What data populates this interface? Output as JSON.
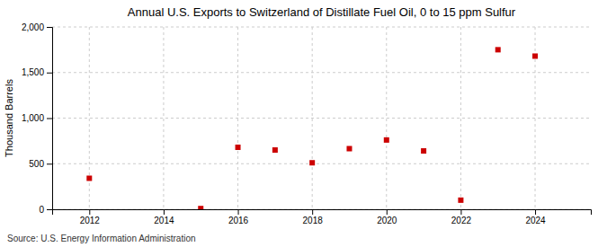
{
  "chart_data": {
    "type": "scatter",
    "title": "Annual U.S. Exports to Switzerland of Distillate Fuel Oil, 0 to 15 ppm Sulfur",
    "ylabel": "Thousand Barrels",
    "annotation": "Source: U.S. Energy Information Administration",
    "x": [
      2012,
      2015,
      2016,
      2017,
      2018,
      2019,
      2020,
      2021,
      2022,
      2023,
      2024
    ],
    "values": [
      340,
      8,
      680,
      650,
      510,
      665,
      760,
      640,
      100,
      1750,
      1680
    ],
    "color": "#cc0000",
    "marker": "square",
    "xlim": [
      2011.0,
      2025.5
    ],
    "xticks": [
      2012,
      2014,
      2016,
      2018,
      2020,
      2022,
      2024
    ],
    "ylim": [
      0,
      2000
    ],
    "yticks": [
      0,
      500,
      {
        "value": 1000,
        "label": "1,000"
      },
      {
        "value": 1500,
        "label": "1,500"
      },
      {
        "value": 2000,
        "label": "2,000"
      }
    ],
    "grid": true
  }
}
